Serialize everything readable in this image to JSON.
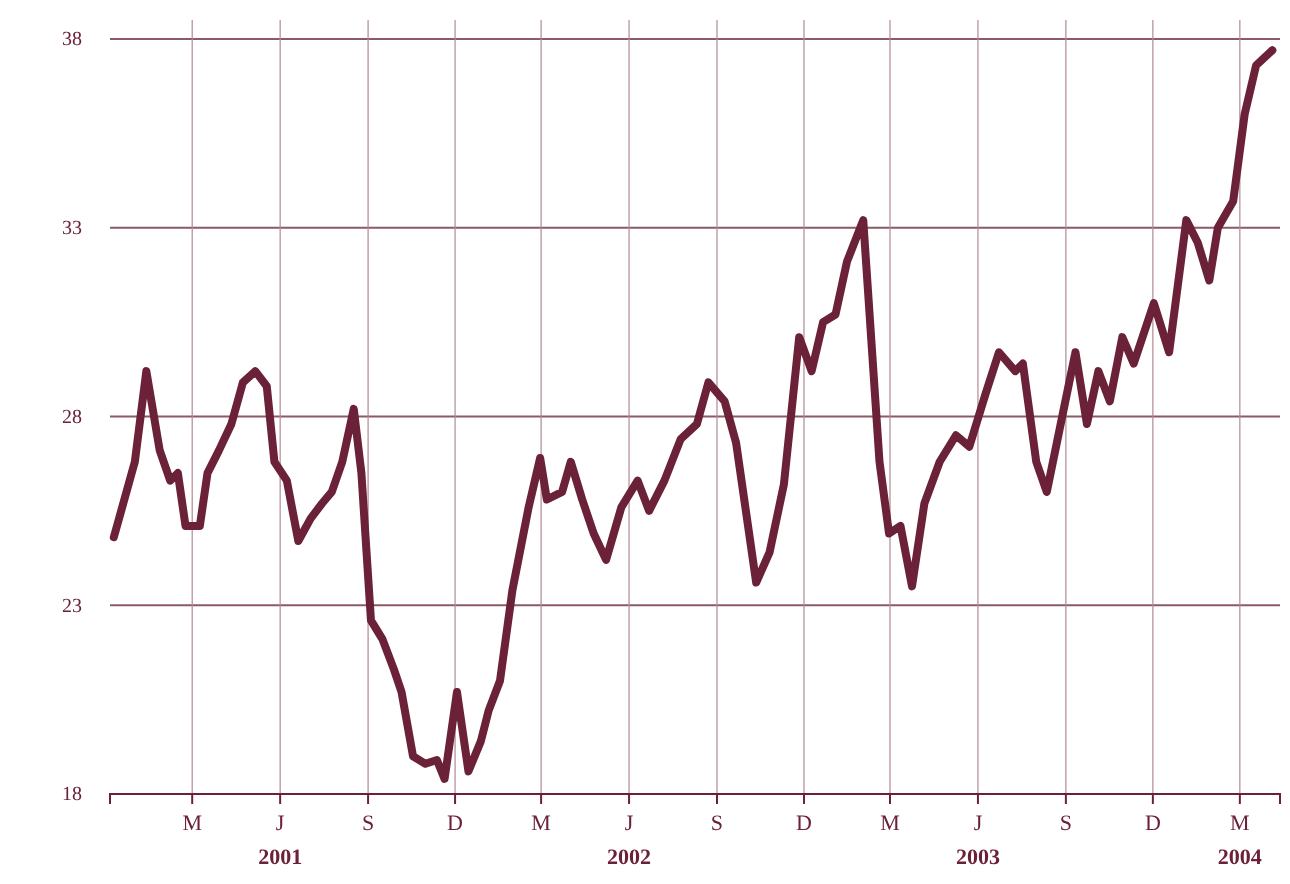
{
  "chart_data": {
    "type": "line",
    "line_style": "solid",
    "marker": "none",
    "grid": true,
    "xlim": [
      "2000-12-05",
      "2004-04-12"
    ],
    "xticks": [
      {
        "value": "2001-03-01",
        "label": "M"
      },
      {
        "value": "2001-06-01",
        "label": "J\n2001"
      },
      {
        "value": "2001-09-01",
        "label": "S"
      },
      {
        "value": "2001-12-01",
        "label": "D"
      },
      {
        "value": "2002-03-01",
        "label": "M"
      },
      {
        "value": "2002-06-01",
        "label": "J\n2002"
      },
      {
        "value": "2002-09-01",
        "label": "S"
      },
      {
        "value": "2002-12-01",
        "label": "D"
      },
      {
        "value": "2003-03-01",
        "label": "M"
      },
      {
        "value": "2003-06-01",
        "label": "J\n2003"
      },
      {
        "value": "2003-09-01",
        "label": "S"
      },
      {
        "value": "2003-12-01",
        "label": "D"
      },
      {
        "value": "2004-03-01",
        "label": "M\n2004"
      }
    ],
    "ylim": [
      18,
      38.5
    ],
    "yticks": [
      18,
      23,
      28,
      33,
      38
    ],
    "x": [
      "2000-12-09",
      "2000-12-31",
      "2001-01-12",
      "2001-01-26",
      "2001-02-06",
      "2001-02-14",
      "2001-02-22",
      "2001-03-09",
      "2001-03-17",
      "2001-03-29",
      "2001-04-11",
      "2001-04-23",
      "2001-05-06",
      "2001-05-18",
      "2001-05-26",
      "2001-06-08",
      "2001-06-20",
      "2001-07-03",
      "2001-07-15",
      "2001-07-25",
      "2001-08-05",
      "2001-08-17",
      "2001-08-25",
      "2001-09-04",
      "2001-09-16",
      "2001-09-28",
      "2001-10-06",
      "2001-10-18",
      "2001-10-31",
      "2001-11-12",
      "2001-11-20",
      "2001-12-03",
      "2001-12-15",
      "2001-12-28",
      "2002-01-05",
      "2002-01-17",
      "2002-01-30",
      "2002-02-16",
      "2002-02-28",
      "2002-03-07",
      "2002-03-23",
      "2002-04-01",
      "2002-04-13",
      "2002-04-25",
      "2002-05-08",
      "2002-05-24",
      "2002-06-10",
      "2002-06-22",
      "2002-07-08",
      "2002-07-25",
      "2002-08-11",
      "2002-08-23",
      "2002-09-09",
      "2002-09-21",
      "2002-10-12",
      "2002-10-26",
      "2002-11-10",
      "2002-11-26",
      "2002-12-09",
      "2002-12-21",
      "2003-01-03",
      "2003-01-15",
      "2003-02-01",
      "2003-02-18",
      "2003-02-28",
      "2003-03-12",
      "2003-03-24",
      "2003-04-06",
      "2003-04-22",
      "2003-05-09",
      "2003-05-23",
      "2003-06-09",
      "2003-06-23",
      "2003-07-10",
      "2003-07-18",
      "2003-08-01",
      "2003-08-12",
      "2003-08-29",
      "2003-09-11",
      "2003-09-23",
      "2003-10-05",
      "2003-10-17",
      "2003-10-30",
      "2003-11-11",
      "2003-12-02",
      "2003-12-18",
      "2004-01-05",
      "2004-01-17",
      "2004-01-29",
      "2004-02-07",
      "2004-02-23",
      "2004-03-06",
      "2004-03-18",
      "2004-04-04"
    ],
    "series": [
      {
        "color": "#6b2238",
        "values": [
          24.8,
          26.8,
          29.2,
          27.1,
          26.3,
          26.5,
          25.1,
          25.1,
          26.5,
          27.1,
          27.8,
          28.9,
          29.2,
          28.8,
          26.8,
          26.3,
          24.7,
          25.3,
          25.7,
          26.0,
          26.8,
          28.2,
          26.5,
          22.6,
          22.1,
          21.3,
          20.7,
          19.0,
          18.8,
          18.9,
          18.4,
          20.7,
          18.6,
          19.4,
          20.2,
          21.0,
          23.4,
          25.6,
          26.9,
          25.8,
          26.0,
          26.8,
          25.8,
          24.9,
          24.2,
          25.6,
          26.3,
          25.5,
          26.3,
          27.4,
          27.8,
          28.9,
          28.4,
          27.3,
          23.6,
          24.4,
          26.2,
          30.1,
          29.2,
          30.5,
          30.7,
          32.1,
          33.2,
          26.8,
          24.9,
          25.1,
          23.5,
          25.7,
          26.8,
          27.5,
          27.2,
          28.6,
          29.7,
          29.2,
          29.4,
          26.8,
          26.0,
          28.1,
          29.7,
          27.8,
          29.2,
          28.4,
          30.1,
          29.4,
          31.0,
          29.7,
          33.2,
          32.6,
          31.6,
          33.0,
          33.7,
          36.0,
          37.3,
          37.7
        ]
      }
    ]
  }
}
